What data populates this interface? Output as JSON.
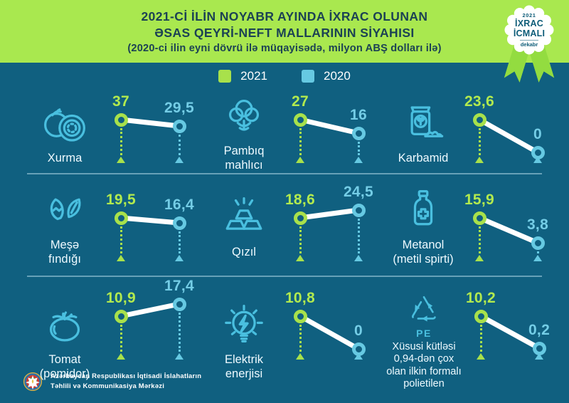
{
  "header": {
    "title_line1": "2021-Cİ İLİN NOYABR AYINDA İXRAC OLUNAN",
    "title_line2": "ƏSAS QEYRİ-NEFT MALLARININ SİYAHISI",
    "subtitle": "(2020-ci ilin eyni dövrü ilə müqayisədə, milyon ABŞ dolları ilə)"
  },
  "badge": {
    "year": "2021",
    "line1": "İXRAC",
    "line2": "İCMALI",
    "month": "dekabr"
  },
  "legend": {
    "items": [
      {
        "label": "2021",
        "color": "#a8e14b"
      },
      {
        "label": "2020",
        "color": "#66c9e2"
      }
    ]
  },
  "products": [
    {
      "label": "Xurma",
      "icon": "persimmon-icon"
    },
    {
      "label": "Pambıq\nmahlıcı",
      "icon": "cotton-icon"
    },
    {
      "label": "Karbamid",
      "icon": "fertilizer-bag-icon"
    },
    {
      "label": "Meşə\nfındığı",
      "icon": "hazelnut-icon"
    },
    {
      "label": "Qızıl",
      "icon": "gold-bars-icon"
    },
    {
      "label": "Metanol\n(metil spirti)",
      "icon": "medicine-bottle-icon"
    },
    {
      "label": "Tomat\n(pomidor)",
      "icon": "tomato-icon"
    },
    {
      "label": "Elektrik\nenerjisi",
      "icon": "light-bulb-icon"
    },
    {
      "label": "Xüsusi kütləsi\n0,94-dən çox\nolan ilkin formalı\npolietilen",
      "icon": "recycling-pe-icon",
      "sub": "PE"
    }
  ],
  "chart_data": {
    "type": "line",
    "title": "2021-Cİ İLİN NOYABR AYINDA İXRAC OLUNAN ƏSAS QEYRİ-NEFT MALLARININ SİYAHISI",
    "subtitle": "(2020-ci ilin eyni dövrü ilə müqayisədə, milyon ABŞ dolları ilə)",
    "legend": [
      "2021",
      "2020"
    ],
    "legend_position": "top",
    "categories": [
      "Xurma",
      "Pambıq mahlıcı",
      "Karbamid",
      "Meşə fındığı",
      "Qızıl",
      "Metanol (metil spirti)",
      "Tomat (pomidor)",
      "Elektrik enerjisi",
      "Xüsusi kütləsi 0,94-dən çox olan ilkin formalı polietilen"
    ],
    "series": [
      {
        "name": "2021",
        "values": [
          37,
          27,
          23.6,
          19.5,
          18.6,
          15.9,
          10.9,
          10.8,
          10.2
        ]
      },
      {
        "name": "2020",
        "values": [
          29.5,
          16,
          0,
          16.4,
          24.5,
          3.8,
          17.4,
          0,
          0.2
        ]
      }
    ]
  },
  "footer": {
    "org_line1": "Azərbaycan Respublikası İqtisadi İslahatların",
    "org_line2": "Təhlili və Kommunikasiya Mərkəzi"
  },
  "colors": {
    "background": "#106080",
    "banner": "#a9e84f",
    "accent_2021": "#a8e14b",
    "accent_2020": "#66c9e2",
    "icon_stroke": "#49bfdf",
    "title_text": "#1c4254",
    "trend_line": "#ffffff"
  }
}
